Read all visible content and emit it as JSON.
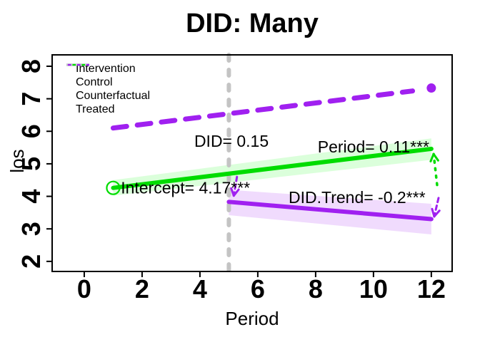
{
  "title": "DID: Many",
  "axes": {
    "x": {
      "label": "Period",
      "tick_labels": [
        "0",
        "2",
        "4",
        "6",
        "8",
        "10",
        "12"
      ],
      "tick_values": [
        0,
        2,
        4,
        6,
        8,
        10,
        12
      ]
    },
    "y": {
      "label": "los",
      "tick_labels": [
        "2",
        "3",
        "4",
        "5",
        "6",
        "7",
        "8"
      ],
      "tick_values": [
        2,
        3,
        4,
        5,
        6,
        7,
        8
      ]
    }
  },
  "legend": {
    "position": "top-left",
    "items": [
      {
        "label": "Intervention",
        "color": "#A020F0",
        "style": "solid"
      },
      {
        "label": "Control",
        "color": "#00DC00",
        "style": "solid"
      },
      {
        "label": "Counterfactual",
        "color": "#A020F0",
        "style": "dashed"
      },
      {
        "label": "Treated",
        "color": "#C4C4C4",
        "style": "dotted"
      }
    ]
  },
  "chart_data": {
    "type": "line",
    "title": "DID: Many",
    "xlabel": "Period",
    "ylabel": "los",
    "xlim": [
      -1.11,
      12.72
    ],
    "ylim": [
      1.69,
      8.35
    ],
    "grid": false,
    "estimates": {
      "Intercept": "4.17***",
      "Period": "0.11***",
      "DID": "0.15",
      "DID.Trend": "-0.2***"
    },
    "series": [
      {
        "name": "Counterfactual",
        "color": "#A020F0",
        "style": "dashed",
        "width": 7,
        "x": [
          1,
          11.35
        ],
        "y": [
          6.1,
          7.24
        ]
      },
      {
        "name": "Control",
        "color": "#00DC00",
        "style": "solid",
        "width": 6,
        "x": [
          1,
          12
        ],
        "y": [
          4.26,
          5.46
        ],
        "band": {
          "upper": [
            4.5,
            5.78
          ],
          "lower": [
            4.02,
            5.12
          ],
          "fill": "#00FF00",
          "opacity": 0.14
        }
      },
      {
        "name": "Intervention",
        "color": "#A020F0",
        "style": "solid",
        "width": 6,
        "x": [
          5,
          12
        ],
        "y": [
          3.83,
          3.3
        ],
        "band": {
          "upper": [
            4.2,
            3.77
          ],
          "lower": [
            3.42,
            2.83
          ],
          "fill": "#A020F0",
          "opacity": 0.16
        }
      }
    ],
    "vline": {
      "x": 5,
      "color": "#C4C4C4",
      "style": "dashed",
      "width": 6
    },
    "points": [
      {
        "x": 1,
        "y": 4.26,
        "shape": "open-circle",
        "color": "#00DC00",
        "r": 9
      },
      {
        "x": 12,
        "y": 7.33,
        "shape": "filled-circle",
        "color": "#A020F0",
        "r": 6.5
      }
    ],
    "arrows": [
      {
        "id": "did-gap-start",
        "from": [
          5.28,
          4.6
        ],
        "to": [
          5.17,
          4.02
        ],
        "color": "#A020F0",
        "style": "dashed",
        "width": 3
      },
      {
        "id": "gap-end-up",
        "from": [
          12.2,
          4.35
        ],
        "to": [
          12.08,
          5.3
        ],
        "color": "#00DC00",
        "style": "dotted",
        "width": 3.5
      },
      {
        "id": "gap-end-down",
        "from": [
          12.25,
          3.95
        ],
        "to": [
          12.1,
          3.38
        ],
        "color": "#A020F0",
        "style": "dashed",
        "width": 3
      }
    ],
    "annotations": [
      {
        "id": "did",
        "text": "DID= 0.15",
        "x": 5.09,
        "y": 5.7
      },
      {
        "id": "period",
        "text": "Period= 0.11***",
        "x": 10.0,
        "y": 5.52
      },
      {
        "id": "intercept",
        "text": "Intercept= 4.17***",
        "x": 3.5,
        "y": 4.26
      },
      {
        "id": "did-trend",
        "text": "DID.Trend= -0.2***",
        "x": 9.43,
        "y": 3.97
      }
    ]
  }
}
